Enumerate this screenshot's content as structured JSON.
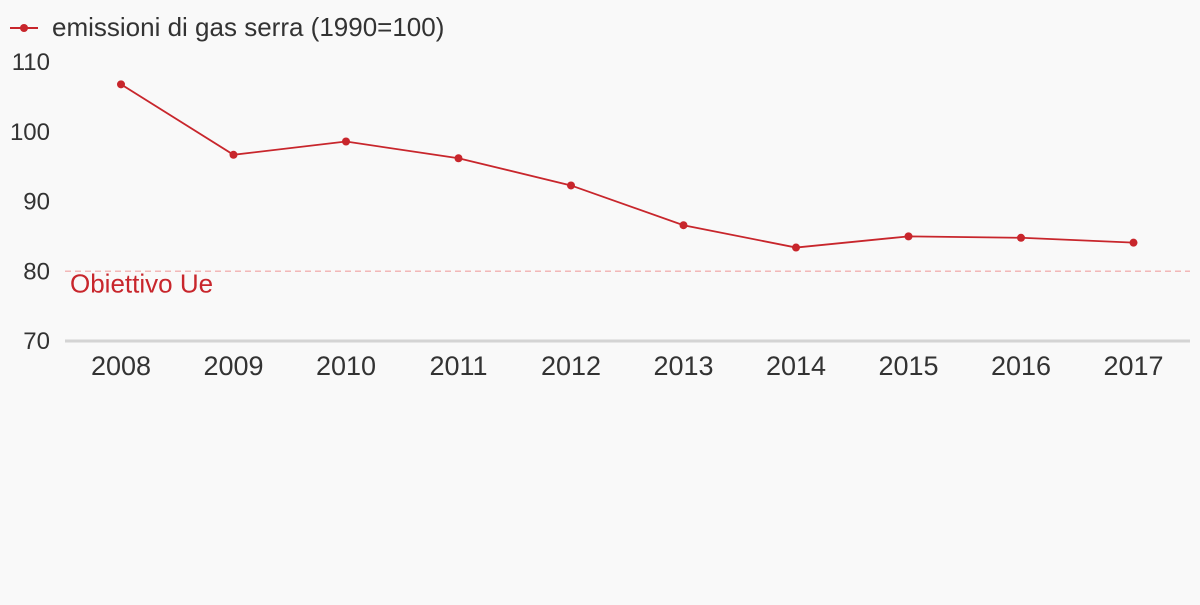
{
  "chart_data": {
    "type": "line",
    "x": [
      "2008",
      "2009",
      "2010",
      "2011",
      "2012",
      "2013",
      "2014",
      "2015",
      "2016",
      "2017"
    ],
    "series": [
      {
        "name": "emissioni di gas serra (1990=100)",
        "values": [
          106.8,
          96.7,
          98.6,
          96.2,
          92.3,
          86.6,
          83.4,
          85.0,
          84.8,
          84.1
        ]
      }
    ],
    "y_ticks": [
      "110",
      "100",
      "90",
      "80",
      "70"
    ],
    "ylim": [
      70,
      110
    ],
    "grid": false,
    "legend": "top-left",
    "reference_line": {
      "value": 80,
      "label": "Obiettivo Ue"
    },
    "colors": {
      "series": "#c8262c",
      "reference_line": "#f2b8b8",
      "reference_label": "#c8262c",
      "axis": "#d4d4d4",
      "text": "#333333",
      "background": "#f9f9f9"
    }
  }
}
